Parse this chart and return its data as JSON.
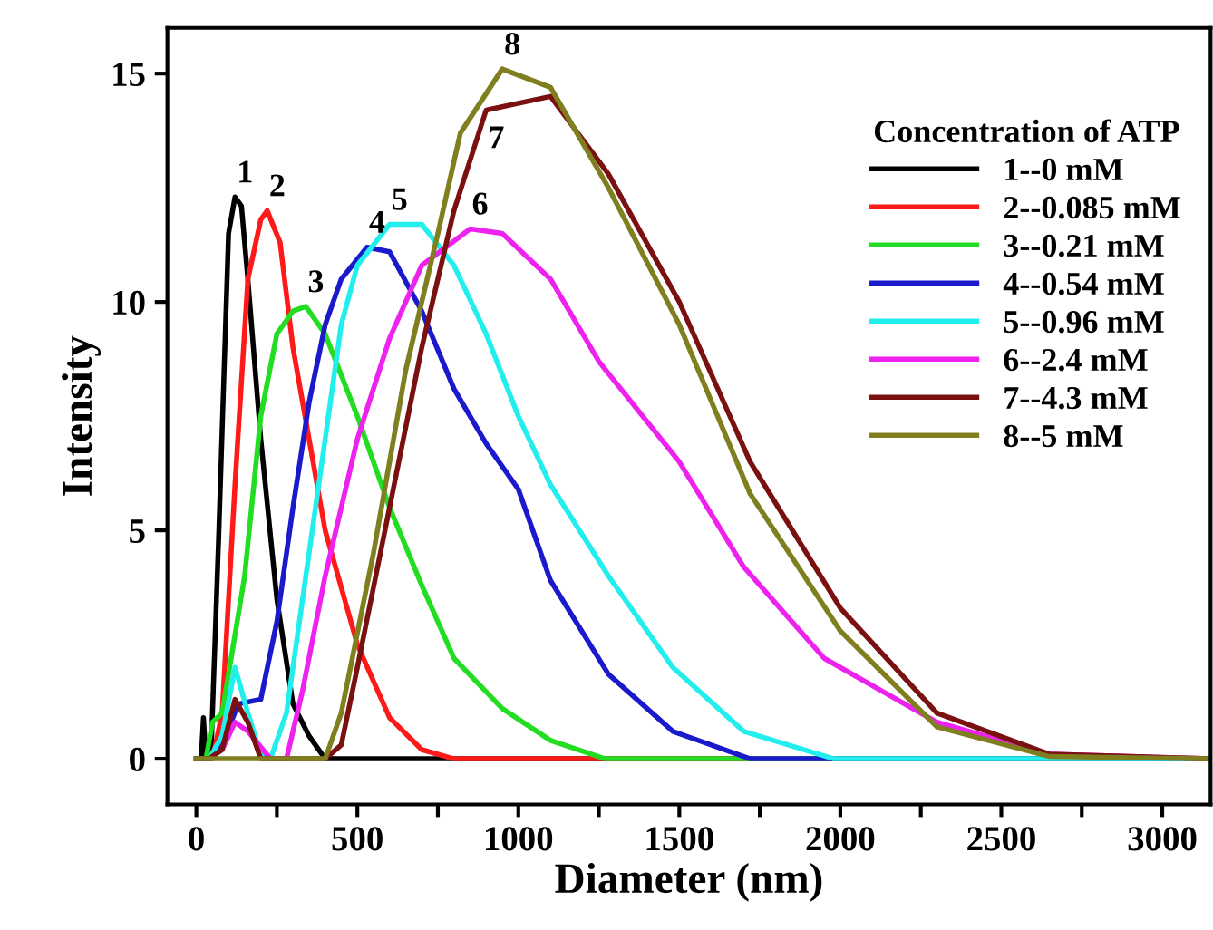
{
  "chart_data": {
    "type": "line",
    "xlabel": "Diameter (nm)",
    "ylabel": "Intensity",
    "legend_title": "Concentration of ATP",
    "legend": "top right",
    "grid": false,
    "marker": "none",
    "line_style": "solid",
    "xlim": [
      -90,
      3150
    ],
    "ylim": [
      -1,
      16
    ],
    "xticks": [
      0,
      {
        "value": 250,
        "label": null
      },
      500,
      {
        "value": 750,
        "label": null
      },
      1000,
      {
        "value": 1250,
        "label": null
      },
      1500,
      {
        "value": 1750,
        "label": null
      },
      2000,
      {
        "value": 2250,
        "label": null
      },
      2500,
      {
        "value": 2750,
        "label": null
      },
      3000
    ],
    "yticks": [
      0,
      5,
      10,
      15
    ],
    "series": [
      {
        "name": "1--0 mM",
        "color": "#000000",
        "x": [
          0,
          15,
          22,
          30,
          45,
          70,
          100,
          120,
          140,
          160,
          200,
          250,
          300,
          350,
          400,
          3150
        ],
        "values": [
          0,
          0,
          0.9,
          0,
          0,
          5,
          11.5,
          12.3,
          12.1,
          10.5,
          7,
          3.5,
          1.2,
          0.5,
          0,
          0
        ]
      },
      {
        "name": "2--0.085 mM",
        "color": "#ff1a1a",
        "x": [
          0,
          50,
          80,
          120,
          160,
          200,
          220,
          260,
          300,
          400,
          500,
          600,
          700,
          800,
          3150
        ],
        "values": [
          0,
          0,
          1,
          6,
          10.5,
          11.8,
          12,
          11.3,
          9,
          5,
          2.5,
          0.9,
          0.2,
          0,
          0
        ]
      },
      {
        "name": "3--0.21 mM",
        "color": "#22dd22",
        "x": [
          0,
          30,
          50,
          80,
          150,
          200,
          250,
          300,
          340,
          400,
          500,
          600,
          700,
          800,
          950,
          1100,
          1270,
          3150
        ],
        "values": [
          0,
          0,
          0.8,
          1,
          4,
          7.5,
          9.3,
          9.8,
          9.9,
          9.3,
          7.5,
          5.5,
          3.8,
          2.2,
          1.1,
          0.4,
          0,
          0
        ]
      },
      {
        "name": "4--0.54 mM",
        "color": "#1a1acc",
        "x": [
          0,
          40,
          80,
          130,
          200,
          250,
          300,
          350,
          400,
          450,
          530,
          600,
          700,
          800,
          900,
          1000,
          1100,
          1280,
          1480,
          1720,
          3150
        ],
        "values": [
          0,
          0,
          0.3,
          1.2,
          1.3,
          3,
          5.5,
          7.8,
          9.5,
          10.5,
          11.2,
          11.1,
          9.8,
          8.1,
          6.9,
          5.9,
          3.9,
          1.85,
          0.6,
          0,
          0
        ]
      },
      {
        "name": "5--0.96 mM",
        "color": "#22eeee",
        "x": [
          0,
          40,
          80,
          120,
          160,
          200,
          230,
          280,
          330,
          400,
          450,
          500,
          600,
          700,
          800,
          900,
          1000,
          1100,
          1280,
          1480,
          1700,
          1980,
          3150
        ],
        "values": [
          0,
          0,
          0.5,
          2,
          1,
          0.1,
          0,
          1,
          3.5,
          7,
          9.5,
          10.8,
          11.7,
          11.7,
          10.8,
          9.3,
          7.5,
          6,
          4,
          2,
          0.6,
          0,
          0
        ]
      },
      {
        "name": "6--2.4 mM",
        "color": "#ee22ee",
        "x": [
          0,
          40,
          80,
          120,
          160,
          230,
          280,
          330,
          400,
          500,
          600,
          700,
          850,
          950,
          1100,
          1250,
          1500,
          1700,
          1950,
          2300,
          2650,
          3150
        ],
        "values": [
          0,
          0,
          0.2,
          0.8,
          0.6,
          0,
          0,
          1.5,
          4,
          7,
          9.2,
          10.8,
          11.6,
          11.5,
          10.5,
          8.7,
          6.5,
          4.2,
          2.2,
          0.8,
          0.1,
          0
        ]
      },
      {
        "name": "7--4.3 mM",
        "color": "#7a1010",
        "x": [
          0,
          40,
          80,
          120,
          160,
          200,
          400,
          450,
          500,
          600,
          700,
          800,
          900,
          1100,
          1280,
          1500,
          1720,
          2000,
          2300,
          2650,
          3150
        ],
        "values": [
          0,
          0,
          0.2,
          1.3,
          0.8,
          0,
          0,
          0.3,
          2,
          5.5,
          9,
          12,
          14.2,
          14.5,
          12.8,
          10,
          6.5,
          3.3,
          1,
          0.1,
          0
        ]
      },
      {
        "name": "8--5 mM",
        "color": "#7f7f20",
        "x": [
          0,
          400,
          450,
          550,
          650,
          750,
          820,
          950,
          1100,
          1280,
          1500,
          1720,
          2000,
          2300,
          2650,
          3150
        ],
        "values": [
          0,
          0,
          1,
          4.5,
          8.5,
          11.5,
          13.7,
          15.1,
          14.7,
          12.5,
          9.5,
          5.8,
          2.8,
          0.7,
          0.05,
          0
        ]
      }
    ],
    "annotations": [
      {
        "text": "1",
        "x": 120,
        "y": 12.3
      },
      {
        "text": "2",
        "x": 220,
        "y": 12
      },
      {
        "text": "3",
        "x": 340,
        "y": 9.9
      },
      {
        "text": "4",
        "x": 530,
        "y": 11.2
      },
      {
        "text": "5",
        "x": 600,
        "y": 11.7
      },
      {
        "text": "6",
        "x": 850,
        "y": 11.6
      },
      {
        "text": "7",
        "x": 900,
        "y": 14.2
      },
      {
        "text": "8",
        "x": 950,
        "y": 15.1
      }
    ]
  }
}
